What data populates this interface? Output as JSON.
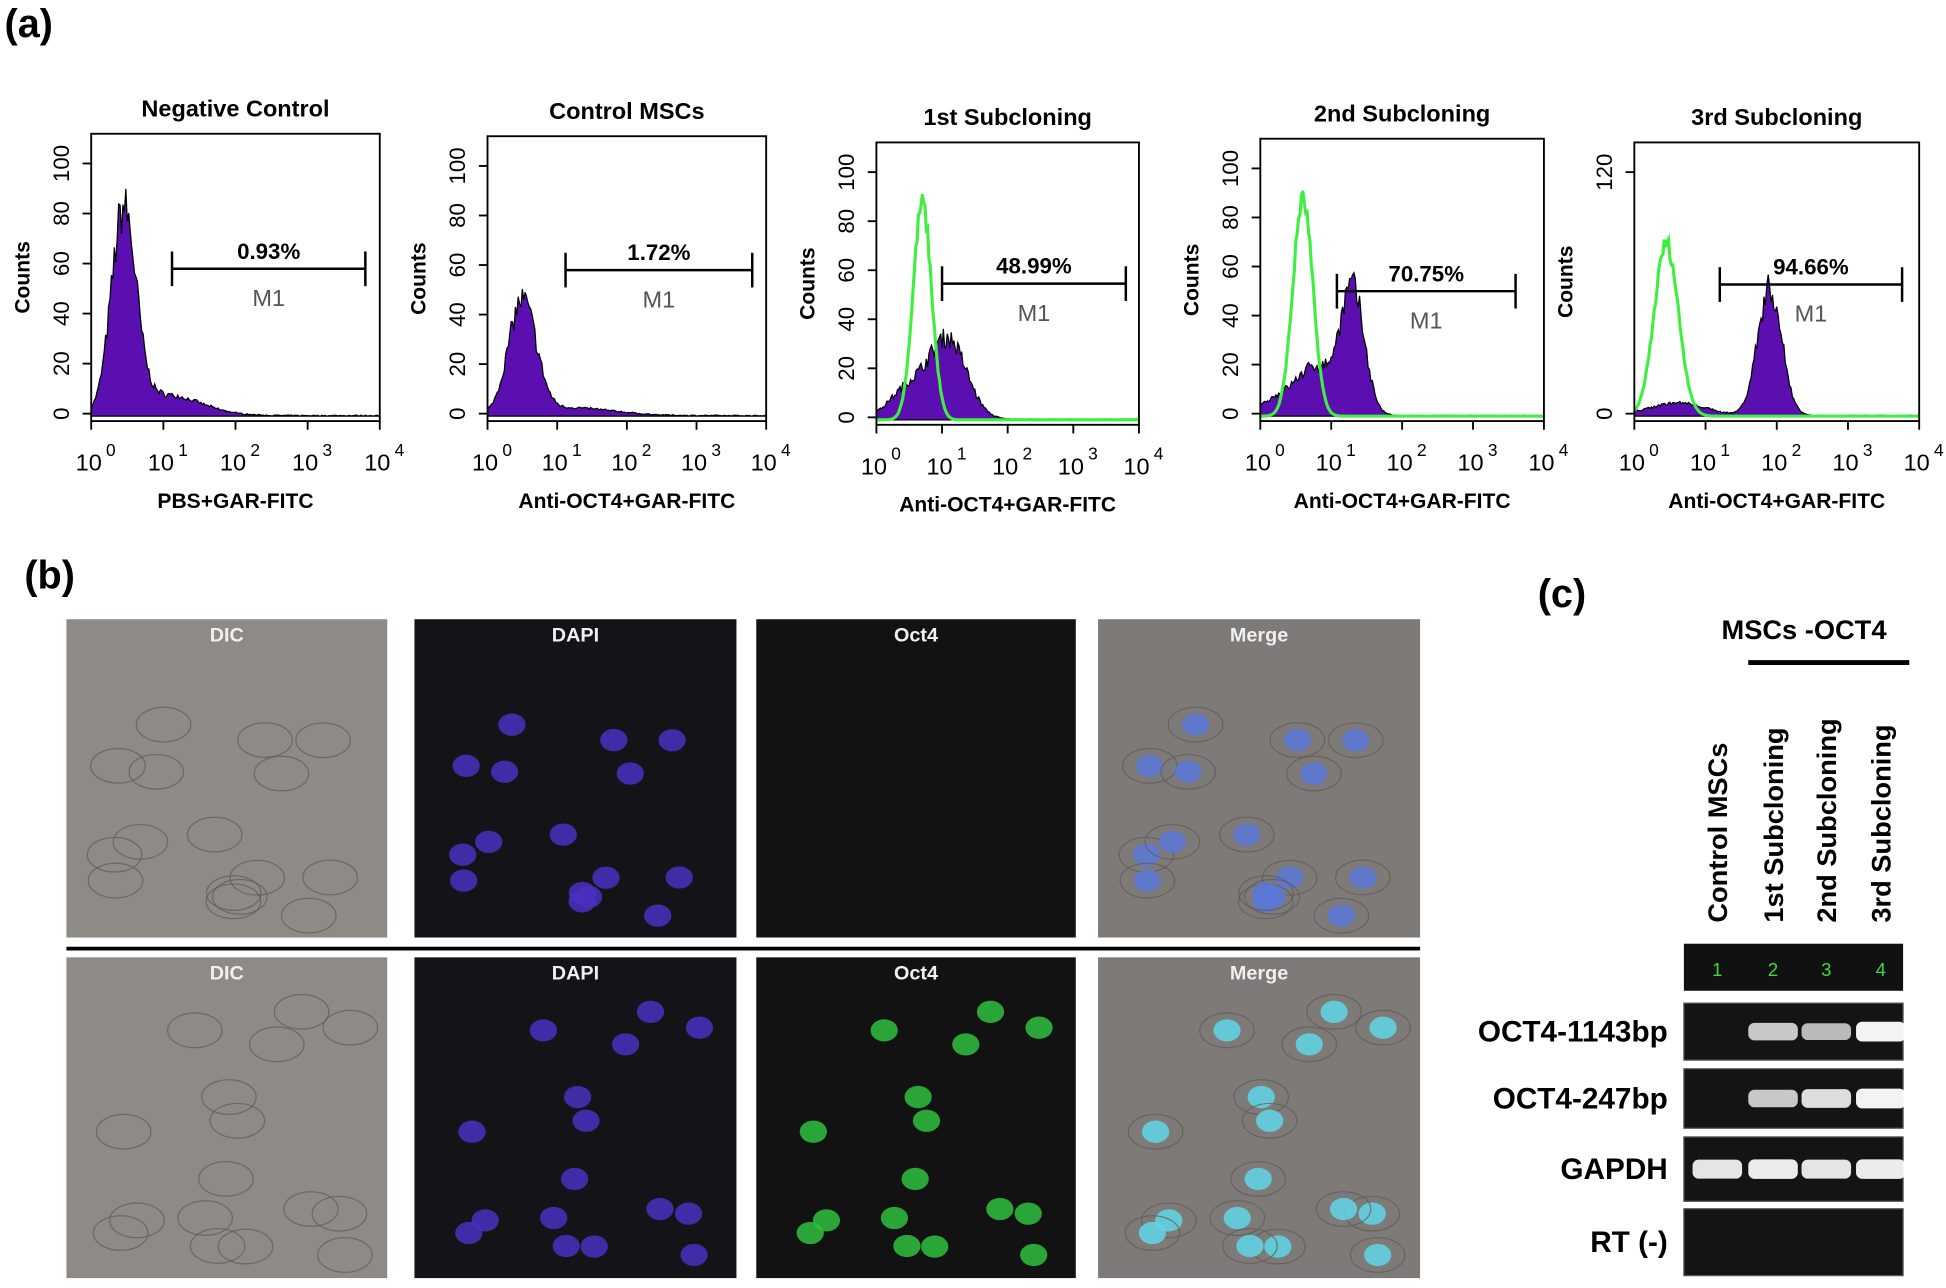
{
  "panel_a": {
    "label": "(a)",
    "plots": [
      {
        "title": "Negative Control",
        "ylabel": "Counts",
        "xlabel": "PBS+GAR-FITC",
        "yticks": [
          0,
          20,
          40,
          60,
          80,
          100
        ],
        "xtick_base": "10",
        "xtick_exponents": [
          "0",
          "1",
          "2",
          "3",
          "4"
        ],
        "gate_percent": "0.93%",
        "gate_label": "M1"
      },
      {
        "title": "Control MSCs",
        "ylabel": "Counts",
        "xlabel": "Anti-OCT4+GAR-FITC",
        "yticks": [
          0,
          20,
          40,
          60,
          80,
          100
        ],
        "xtick_base": "10",
        "xtick_exponents": [
          "0",
          "1",
          "2",
          "3",
          "4"
        ],
        "gate_percent": "1.72%",
        "gate_label": "M1"
      },
      {
        "title": "1st Subcloning",
        "ylabel": "Counts",
        "xlabel": "Anti-OCT4+GAR-FITC",
        "yticks": [
          0,
          20,
          40,
          60,
          80,
          100
        ],
        "xtick_base": "10",
        "xtick_exponents": [
          "0",
          "1",
          "2",
          "3",
          "4"
        ],
        "gate_percent": "48.99%",
        "gate_label": "M1"
      },
      {
        "title": "2nd Subcloning",
        "ylabel": "Counts",
        "xlabel": "Anti-OCT4+GAR-FITC",
        "yticks": [
          0,
          20,
          40,
          60,
          80,
          100
        ],
        "xtick_base": "10",
        "xtick_exponents": [
          "0",
          "1",
          "2",
          "3",
          "4"
        ],
        "gate_percent": "70.75%",
        "gate_label": "M1"
      },
      {
        "title": "3rd Subcloning",
        "ylabel": "Counts",
        "xlabel": "Anti-OCT4+GAR-FITC",
        "yticks": [
          0,
          120
        ],
        "xtick_base": "10",
        "xtick_exponents": [
          "0",
          "1",
          "2",
          "3",
          "4"
        ],
        "gate_percent": "94.66%",
        "gate_label": "M1"
      }
    ]
  },
  "panel_b": {
    "label": "(b)",
    "rows": [
      {
        "channels": [
          "DIC",
          "DAPI",
          "Oct4",
          "Merge"
        ]
      },
      {
        "channels": [
          "DIC",
          "DAPI",
          "Oct4",
          "Merge"
        ]
      }
    ]
  },
  "panel_c": {
    "label": "(c)",
    "group_label": "MSCs -OCT4",
    "lanes": [
      "Control MSCs",
      "1st Subcloning",
      "2nd Subcloning",
      "3rd Subcloning"
    ],
    "lane_numbers": [
      "1",
      "2",
      "3",
      "4"
    ],
    "bands": [
      "OCT4-1143bp",
      "OCT4-247bp",
      "GAPDH",
      "RT (-)"
    ]
  }
}
